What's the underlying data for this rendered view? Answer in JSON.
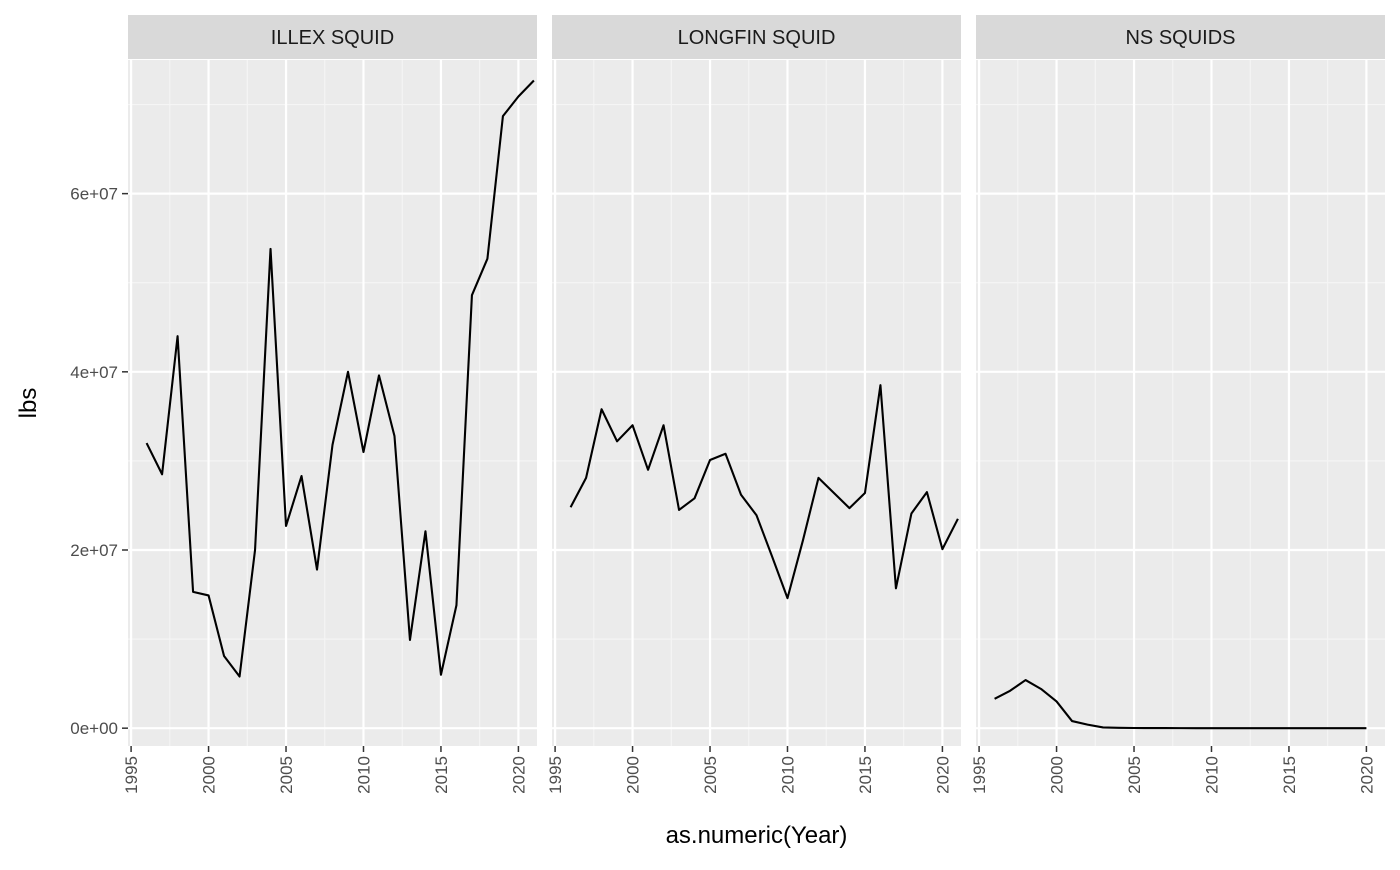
{
  "chart_data": {
    "type": "line",
    "xlabel": "as.numeric(Year)",
    "ylabel": "lbs",
    "xlim": [
      1994.8,
      2021.2
    ],
    "ylim": [
      -2000000,
      75000000
    ],
    "x_ticks": [
      1995,
      2000,
      2005,
      2010,
      2015,
      2020
    ],
    "x_tick_labels": [
      "1995",
      "2000",
      "2005",
      "2010",
      "2015",
      "2020"
    ],
    "y_ticks": [
      0,
      20000000,
      40000000,
      60000000
    ],
    "y_tick_labels": [
      "0e+00",
      "2e+07",
      "4e+07",
      "6e+07"
    ],
    "grid": true,
    "facets": [
      {
        "label": "ILLEX SQUID",
        "x": [
          1996,
          1997,
          1998,
          1999,
          2000,
          2001,
          2002,
          2003,
          2004,
          2005,
          2006,
          2007,
          2008,
          2009,
          2010,
          2011,
          2012,
          2013,
          2014,
          2015,
          2016,
          2017,
          2018,
          2019,
          2020,
          2021
        ],
        "values": [
          32000000,
          28500000,
          44000000,
          15300000,
          14900000,
          8100000,
          5800000,
          20000000,
          53800000,
          22700000,
          28300000,
          17800000,
          31800000,
          40000000,
          31000000,
          39600000,
          32800000,
          9900000,
          22100000,
          6000000,
          13800000,
          48600000,
          52700000,
          68700000,
          70900000,
          72700000
        ]
      },
      {
        "label": "LONGFIN SQUID",
        "x": [
          1996,
          1997,
          1998,
          1999,
          2000,
          2001,
          2002,
          2003,
          2004,
          2005,
          2006,
          2007,
          2008,
          2009,
          2010,
          2011,
          2012,
          2013,
          2014,
          2015,
          2016,
          2017,
          2018,
          2019,
          2020,
          2021
        ],
        "values": [
          24800000,
          28100000,
          35800000,
          32200000,
          34000000,
          29000000,
          34000000,
          24500000,
          25800000,
          30100000,
          30800000,
          26200000,
          23900000,
          19300000,
          14600000,
          21100000,
          28100000,
          26400000,
          24700000,
          26400000,
          38500000,
          15700000,
          24100000,
          26500000,
          20100000,
          23500000
        ]
      },
      {
        "label": "NS SQUIDS",
        "x": [
          1996,
          1997,
          1998,
          1999,
          2000,
          2001,
          2002,
          2003,
          2004,
          2005,
          2006,
          2007,
          2008,
          2009,
          2010,
          2011,
          2012,
          2013,
          2014,
          2015,
          2016,
          2017,
          2018,
          2019,
          2020
        ],
        "values": [
          3300000,
          4200000,
          5400000,
          4400000,
          3000000,
          800000,
          400000,
          80000,
          40000,
          20000,
          10000,
          8000,
          6000,
          5000,
          4000,
          3000,
          2000,
          2000,
          1000,
          1000,
          1000,
          1000,
          1000,
          1000,
          1000
        ]
      }
    ],
    "colors": {
      "panel_background": "#ebebeb",
      "strip_background": "#d9d9d9",
      "grid_major": "#ffffff",
      "grid_minor": "#f5f5f5",
      "line": "#000000",
      "tick_text": "#4d4d4d",
      "tick_mark": "#333333"
    }
  }
}
